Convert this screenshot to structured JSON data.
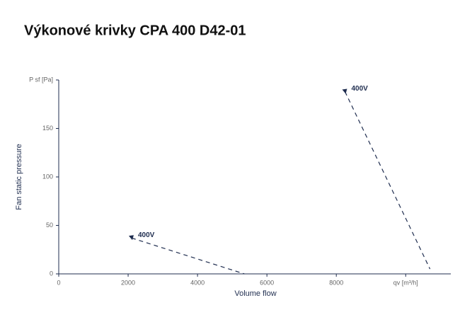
{
  "chart_data": {
    "type": "line",
    "title": "Výkonové krivky CPA 400 D42-01",
    "x_label": "Volume flow",
    "y_label": "Fan static pressure",
    "xlim": [
      0,
      11300
    ],
    "ylim": [
      0,
      200
    ],
    "xticks": [
      0,
      2000,
      4000,
      6000,
      8000,
      {
        "value": 10000,
        "label": "qv [m³/h]"
      }
    ],
    "yticks": [
      0,
      50,
      100,
      150,
      {
        "value": 200,
        "label": "P sf [Pa]"
      }
    ],
    "grid": false,
    "series": [
      {
        "name": "400V",
        "color": "#1f2d4f",
        "x": [
          2100,
          5350
        ],
        "values": [
          37,
          0
        ]
      },
      {
        "name": "400V",
        "color": "#1f2d4f",
        "x": [
          8250,
          10700
        ],
        "values": [
          188,
          5
        ]
      }
    ]
  }
}
